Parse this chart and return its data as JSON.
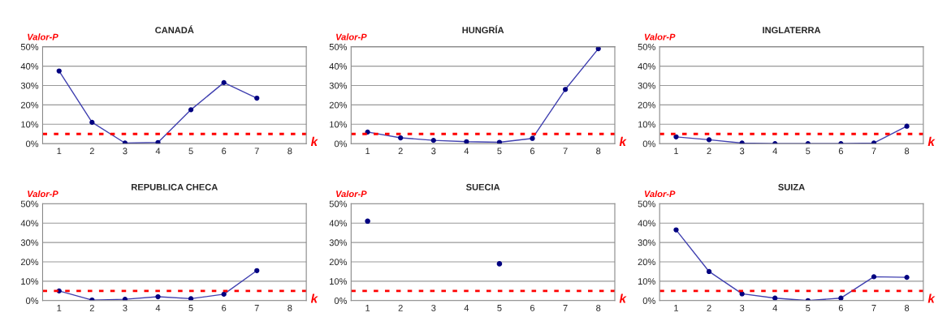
{
  "chart_data": [
    {
      "type": "line",
      "title": "CANADÁ",
      "xlabel": "k",
      "ylabel": "Valor-P",
      "categories": [
        "1",
        "2",
        "3",
        "4",
        "5",
        "6",
        "7",
        "8"
      ],
      "series": [
        {
          "color": "#4040b0",
          "values": [
            37.5,
            11,
            0.3,
            0.6,
            17.5,
            31.5,
            23.5,
            null
          ]
        }
      ],
      "ylim": [
        0,
        50
      ],
      "yticks": [
        {
          "value": 0,
          "label": "0%"
        },
        {
          "value": 10,
          "label": "10%"
        },
        {
          "value": 20,
          "label": "20%"
        },
        {
          "value": 30,
          "label": "30%"
        },
        {
          "value": 40,
          "label": "40%"
        },
        {
          "value": 50,
          "label": "50%"
        }
      ],
      "ref_lines": [
        {
          "axis": "y",
          "value": 5,
          "color": "#ff0000",
          "line_style": "dashed"
        }
      ],
      "grid": "y",
      "marker": "circle",
      "line_style": "solid"
    },
    {
      "type": "line",
      "title": "HUNGRÍA",
      "xlabel": "k",
      "ylabel": "Valor-P",
      "categories": [
        "1",
        "2",
        "3",
        "4",
        "5",
        "6",
        "7",
        "8"
      ],
      "series": [
        {
          "color": "#4040b0",
          "values": [
            6,
            3,
            1.7,
            1,
            0.7,
            2.7,
            28,
            49
          ]
        }
      ],
      "ylim": [
        0,
        50
      ],
      "yticks": [
        {
          "value": 0,
          "label": "0%"
        },
        {
          "value": 10,
          "label": "10%"
        },
        {
          "value": 20,
          "label": "20%"
        },
        {
          "value": 30,
          "label": "30%"
        },
        {
          "value": 40,
          "label": "40%"
        },
        {
          "value": 50,
          "label": "50%"
        }
      ],
      "ref_lines": [
        {
          "axis": "y",
          "value": 5,
          "color": "#ff0000",
          "line_style": "dashed"
        }
      ],
      "grid": "y",
      "marker": "circle",
      "line_style": "solid"
    },
    {
      "type": "line",
      "title": "INGLATERRA",
      "xlabel": "k",
      "ylabel": "Valor-P",
      "categories": [
        "1",
        "2",
        "3",
        "4",
        "5",
        "6",
        "7",
        "8"
      ],
      "series": [
        {
          "color": "#4040b0",
          "values": [
            3.5,
            2,
            0.3,
            0,
            0,
            0,
            0.3,
            9
          ]
        }
      ],
      "ylim": [
        0,
        50
      ],
      "yticks": [
        {
          "value": 0,
          "label": "0%"
        },
        {
          "value": 10,
          "label": "10%"
        },
        {
          "value": 20,
          "label": "20%"
        },
        {
          "value": 30,
          "label": "30%"
        },
        {
          "value": 40,
          "label": "40%"
        },
        {
          "value": 50,
          "label": "50%"
        }
      ],
      "ref_lines": [
        {
          "axis": "y",
          "value": 5,
          "color": "#ff0000",
          "line_style": "dashed"
        }
      ],
      "grid": "y",
      "marker": "circle",
      "line_style": "solid"
    },
    {
      "type": "line",
      "title": "REPUBLICA CHECA",
      "xlabel": "k",
      "ylabel": "Valor-P",
      "categories": [
        "1",
        "2",
        "3",
        "4",
        "5",
        "6",
        "7",
        "8"
      ],
      "series": [
        {
          "color": "#4040b0",
          "values": [
            5,
            0.3,
            0.7,
            2,
            1,
            3.3,
            15.5,
            null
          ]
        }
      ],
      "ylim": [
        0,
        50
      ],
      "yticks": [
        {
          "value": 0,
          "label": "0%"
        },
        {
          "value": 10,
          "label": "10%"
        },
        {
          "value": 20,
          "label": "20%"
        },
        {
          "value": 30,
          "label": "30%"
        },
        {
          "value": 40,
          "label": "40%"
        },
        {
          "value": 50,
          "label": "50%"
        }
      ],
      "ref_lines": [
        {
          "axis": "y",
          "value": 5,
          "color": "#ff0000",
          "line_style": "dashed"
        }
      ],
      "grid": "y",
      "marker": "circle",
      "line_style": "solid"
    },
    {
      "type": "line",
      "title": "SUECIA",
      "xlabel": "k",
      "ylabel": "Valor-P",
      "categories": [
        "1",
        "2",
        "3",
        "4",
        "5",
        "6",
        "7",
        "8"
      ],
      "series": [
        {
          "type": "scatter",
          "color": "#000080",
          "values": [
            41,
            null,
            null,
            null,
            19,
            null,
            null,
            null
          ]
        }
      ],
      "ylim": [
        0,
        50
      ],
      "yticks": [
        {
          "value": 0,
          "label": "0%"
        },
        {
          "value": 10,
          "label": "10%"
        },
        {
          "value": 20,
          "label": "20%"
        },
        {
          "value": 30,
          "label": "30%"
        },
        {
          "value": 40,
          "label": "40%"
        },
        {
          "value": 50,
          "label": "50%"
        }
      ],
      "ref_lines": [
        {
          "axis": "y",
          "value": 5,
          "color": "#ff0000",
          "line_style": "dashed"
        }
      ],
      "grid": "y",
      "marker": "circle"
    },
    {
      "type": "line",
      "title": "SUIZA",
      "xlabel": "k",
      "ylabel": "Valor-P",
      "categories": [
        "1",
        "2",
        "3",
        "4",
        "5",
        "6",
        "7",
        "8"
      ],
      "series": [
        {
          "color": "#4040b0",
          "values": [
            36.5,
            15,
            3.5,
            1.3,
            0,
            1.3,
            12.3,
            12
          ]
        }
      ],
      "ylim": [
        0,
        50
      ],
      "yticks": [
        {
          "value": 0,
          "label": "0%"
        },
        {
          "value": 10,
          "label": "10%"
        },
        {
          "value": 20,
          "label": "20%"
        },
        {
          "value": 30,
          "label": "30%"
        },
        {
          "value": 40,
          "label": "40%"
        },
        {
          "value": 50,
          "label": "50%"
        }
      ],
      "ref_lines": [
        {
          "axis": "y",
          "value": 5,
          "color": "#ff0000",
          "line_style": "dashed"
        }
      ],
      "grid": "y",
      "marker": "circle",
      "line_style": "solid"
    }
  ]
}
